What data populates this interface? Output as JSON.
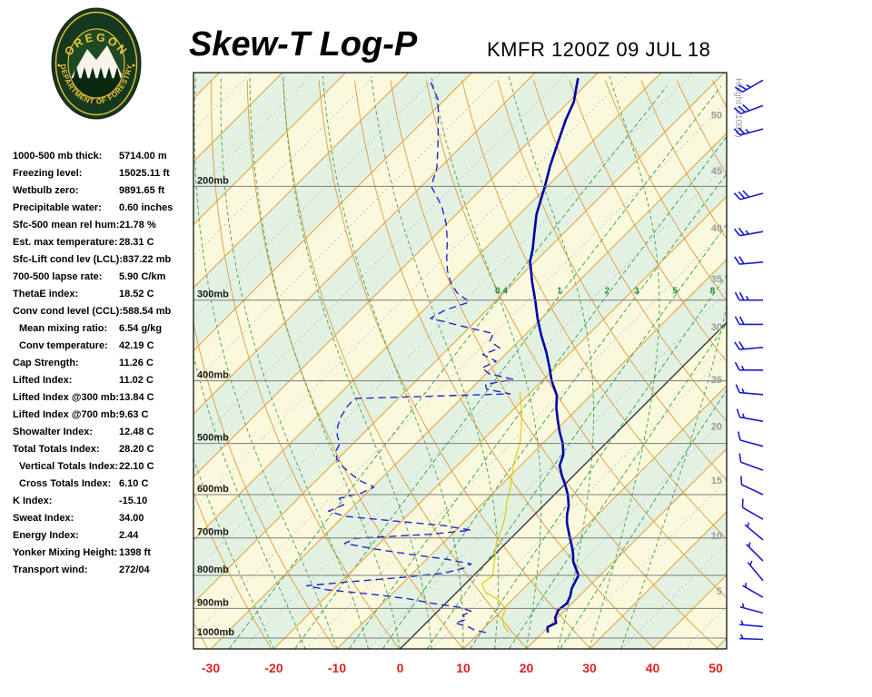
{
  "header": {
    "title": "Skew-T Log-P",
    "station_line": "KMFR 1200Z 09 JUL 18"
  },
  "logo": {
    "top_text": "OREGON",
    "bottom_text": "DEPARTMENT OF FORESTRY"
  },
  "stats": {
    "rows": [
      {
        "label": "1000-500 mb thick:",
        "value": "5714.00 m"
      },
      {
        "label": "Freezing level:",
        "value": "15025.11 ft"
      },
      {
        "label": "Wetbulb zero:",
        "value": "9891.65 ft"
      },
      {
        "label": "Precipitable water:",
        "value": "0.60 inches"
      },
      {
        "label": "Sfc-500 mean rel hum:",
        "value": "21.78 %"
      },
      {
        "label": "Est. max temperature:",
        "value": "28.31 C"
      },
      {
        "label": "Sfc-Lift cond lev (LCL):",
        "value": "837.22 mb"
      },
      {
        "label": "700-500 lapse rate:",
        "value": "5.90 C/km"
      },
      {
        "label": "ThetaE index:",
        "value": "18.52 C"
      },
      {
        "label": "Conv cond level (CCL):",
        "value": "588.54 mb"
      },
      {
        "label": "Mean mixing ratio:",
        "value": "6.54 g/kg",
        "indent": true
      },
      {
        "label": "Conv temperature:",
        "value": "42.19 C",
        "indent": true
      },
      {
        "label": "Cap Strength:",
        "value": "11.26 C"
      },
      {
        "label": "Lifted Index:",
        "value": "11.02 C"
      },
      {
        "label": "Lifted Index @300 mb:",
        "value": "13.84 C"
      },
      {
        "label": "Lifted Index @700 mb:",
        "value": "9.63 C"
      },
      {
        "label": "Showalter Index:",
        "value": "12.48 C"
      },
      {
        "label": "Total Totals Index:",
        "value": "28.20 C"
      },
      {
        "label": "Vertical Totals Index:",
        "value": "22.10 C",
        "indent": true
      },
      {
        "label": "Cross Totals Index:",
        "value": "6.10 C",
        "indent": true
      },
      {
        "label": "K Index:",
        "value": "-15.10"
      },
      {
        "label": "Sweat Index:",
        "value": "34.00"
      },
      {
        "label": "Energy Index:",
        "value": "2.44"
      },
      {
        "label": "Yonker Mixing Height:",
        "value": "1398 ft"
      },
      {
        "label": "Transport wind:",
        "value": "272/04"
      }
    ]
  },
  "chart_data": {
    "type": "line",
    "subtype": "skew-t-log-p",
    "title": "Skew-T Log-P",
    "x_axis": {
      "unit": "C",
      "ticks": [
        {
          "t": -30,
          "label": "-30"
        },
        {
          "t": -20,
          "label": "-20"
        },
        {
          "t": -10,
          "label": "-10"
        },
        {
          "t": 0,
          "label": "0"
        },
        {
          "t": 10,
          "label": "10"
        },
        {
          "t": 20,
          "label": "20"
        },
        {
          "t": 30,
          "label": "30"
        },
        {
          "t": 40,
          "label": "40"
        },
        {
          "t": 50,
          "label": "50"
        }
      ]
    },
    "y_axis": {
      "unit": "mb",
      "scale": "log",
      "top_pressure": 133,
      "bottom_pressure": 1040,
      "pressure_levels": [
        {
          "p": 200,
          "label": "200mb"
        },
        {
          "p": 300,
          "label": "300mb"
        },
        {
          "p": 400,
          "label": "400mb"
        },
        {
          "p": 500,
          "label": "500mb"
        },
        {
          "p": 600,
          "label": "600mb"
        },
        {
          "p": 700,
          "label": "700mb"
        },
        {
          "p": 800,
          "label": "800mb"
        },
        {
          "p": 900,
          "label": "900mb"
        },
        {
          "p": 1000,
          "label": "1000mb"
        }
      ]
    },
    "height_scale": {
      "label": "Height (x1000)",
      "entries": [
        {
          "p": 155,
          "label": "50"
        },
        {
          "p": 189,
          "label": "45"
        },
        {
          "p": 232,
          "label": "40"
        },
        {
          "p": 278,
          "label": "35"
        },
        {
          "p": 330,
          "label": "30"
        },
        {
          "p": 398,
          "label": "25"
        },
        {
          "p": 470,
          "label": "20"
        },
        {
          "p": 570,
          "label": "15"
        },
        {
          "p": 694,
          "label": "10"
        },
        {
          "p": 845,
          "label": "5"
        }
      ]
    },
    "mixing_ratio_lines": [
      0.4,
      1,
      2,
      3,
      5,
      8,
      12,
      20
    ],
    "mixing_ratio_labels": [
      {
        "w": 0.4,
        "label": "0.4"
      },
      {
        "w": 1,
        "label": "1"
      },
      {
        "w": 2,
        "label": "2"
      },
      {
        "w": 3,
        "label": "3"
      },
      {
        "w": 5,
        "label": "5"
      },
      {
        "w": 8,
        "label": "8"
      }
    ],
    "dry_adiabats": {
      "theta_min": 230,
      "theta_max": 450,
      "step": 10
    },
    "moist_adiabat_starts": [
      -20,
      -15,
      -10,
      -5,
      0,
      5,
      10,
      15,
      20,
      25,
      30,
      35
    ],
    "series": [
      {
        "name": "temperature",
        "color": "#0000a8",
        "style": "solid",
        "width": 2.6,
        "points": [
          [
            981,
            20.8
          ],
          [
            962,
            19.9
          ],
          [
            948,
            20.6
          ],
          [
            930,
            19.6
          ],
          [
            905,
            18.9
          ],
          [
            884,
            19.2
          ],
          [
            862,
            18.6
          ],
          [
            838,
            17.6
          ],
          [
            815,
            17.0
          ],
          [
            800,
            16.6
          ],
          [
            782,
            15.2
          ],
          [
            762,
            13.6
          ],
          [
            742,
            12.4
          ],
          [
            722,
            11.0
          ],
          [
            700,
            9.3
          ],
          [
            682,
            7.9
          ],
          [
            663,
            6.4
          ],
          [
            645,
            5.2
          ],
          [
            624,
            4.0
          ],
          [
            600,
            2.1
          ],
          [
            581,
            0.3
          ],
          [
            561,
            -1.8
          ],
          [
            541,
            -3.8
          ],
          [
            521,
            -4.9
          ],
          [
            500,
            -6.8
          ],
          [
            481,
            -9.0
          ],
          [
            461,
            -11.2
          ],
          [
            441,
            -13.4
          ],
          [
            421,
            -15.4
          ],
          [
            400,
            -18.5
          ],
          [
            381,
            -21.0
          ],
          [
            361,
            -23.9
          ],
          [
            341,
            -27.2
          ],
          [
            321,
            -30.5
          ],
          [
            300,
            -33.9
          ],
          [
            281,
            -37.3
          ],
          [
            261,
            -40.9
          ],
          [
            250,
            -42.4
          ],
          [
            236,
            -44.7
          ],
          [
            221,
            -47.3
          ],
          [
            200,
            -50.4
          ],
          [
            186,
            -52.8
          ],
          [
            171,
            -55.3
          ],
          [
            158,
            -57.6
          ],
          [
            148,
            -59.2
          ],
          [
            141,
            -61.0
          ],
          [
            136,
            -62.3
          ]
        ]
      },
      {
        "name": "dewpoint",
        "color": "#2424cf",
        "style": "dashed",
        "width": 1.4,
        "points": [
          [
            981,
            11.0
          ],
          [
            972,
            8.8
          ],
          [
            960,
            7.2
          ],
          [
            948,
            4.6
          ],
          [
            936,
            5.8
          ],
          [
            922,
            4.6
          ],
          [
            910,
            5.4
          ],
          [
            897,
            3.0
          ],
          [
            884,
            -2.0
          ],
          [
            870,
            -6.5
          ],
          [
            856,
            -13.0
          ],
          [
            842,
            -21.0
          ],
          [
            830,
            -24.8
          ],
          [
            818,
            -18.5
          ],
          [
            806,
            -11.0
          ],
          [
            793,
            -5.0
          ],
          [
            780,
            -2.8
          ],
          [
            768,
            -2.2
          ],
          [
            755,
            -7.0
          ],
          [
            742,
            -13.5
          ],
          [
            728,
            -20.0
          ],
          [
            714,
            -25.5
          ],
          [
            701,
            -24.6
          ],
          [
            691,
            -13.5
          ],
          [
            681,
            -7.6
          ],
          [
            670,
            -12.5
          ],
          [
            658,
            -22.0
          ],
          [
            648,
            -29.8
          ],
          [
            636,
            -33.2
          ],
          [
            622,
            -31.8
          ],
          [
            608,
            -33.5
          ],
          [
            596,
            -30.8
          ],
          [
            584,
            -29.8
          ],
          [
            571,
            -33.0
          ],
          [
            558,
            -35.4
          ],
          [
            544,
            -37.8
          ],
          [
            528,
            -40.2
          ],
          [
            512,
            -41.6
          ],
          [
            500,
            -42.1
          ],
          [
            486,
            -43.8
          ],
          [
            470,
            -45.2
          ],
          [
            454,
            -46.2
          ],
          [
            438,
            -46.8
          ],
          [
            426,
            -46.9
          ],
          [
            419,
            -23.0
          ],
          [
            412,
            -27.5
          ],
          [
            405,
            -28.4
          ],
          [
            398,
            -24.8
          ],
          [
            390,
            -29.5
          ],
          [
            382,
            -31.6
          ],
          [
            373,
            -30.4
          ],
          [
            364,
            -33.6
          ],
          [
            356,
            -31.9
          ],
          [
            347,
            -34.6
          ],
          [
            338,
            -35.2
          ],
          [
            329,
            -41.5
          ],
          [
            320,
            -47.6
          ],
          [
            311,
            -46.6
          ],
          [
            302,
            -44.0
          ],
          [
            292,
            -47.5
          ],
          [
            282,
            -50.0
          ],
          [
            270,
            -52.5
          ],
          [
            257,
            -54.8
          ],
          [
            243,
            -57.2
          ],
          [
            229,
            -60.0
          ],
          [
            215,
            -63.5
          ],
          [
            200,
            -68.4
          ],
          [
            187,
            -70.5
          ],
          [
            173,
            -73.8
          ],
          [
            159,
            -77.5
          ],
          [
            147,
            -81.0
          ],
          [
            138,
            -85.0
          ]
        ]
      },
      {
        "name": "wetbulb",
        "color": "#ddd000",
        "style": "solid",
        "width": 1.2,
        "points": [
          [
            981,
            14.6
          ],
          [
            955,
            12.6
          ],
          [
            928,
            11.2
          ],
          [
            903,
            10.4
          ],
          [
            876,
            8.2
          ],
          [
            848,
            4.4
          ],
          [
            824,
            2.6
          ],
          [
            801,
            3.1
          ],
          [
            772,
            1.6
          ],
          [
            744,
            0.2
          ],
          [
            716,
            -1.4
          ],
          [
            700,
            -2.1
          ],
          [
            672,
            -3.2
          ],
          [
            644,
            -4.6
          ],
          [
            616,
            -6.4
          ],
          [
            588,
            -7.9
          ],
          [
            560,
            -9.8
          ],
          [
            532,
            -11.7
          ],
          [
            500,
            -13.6
          ],
          [
            472,
            -15.9
          ],
          [
            444,
            -18.6
          ],
          [
            416,
            -21.8
          ]
        ]
      }
    ],
    "winds": {
      "column_x": 840,
      "color": "#1a1ad0",
      "barbs": [
        {
          "p": 137,
          "dir": 240,
          "spd": 25
        },
        {
          "p": 150,
          "dir": 250,
          "spd": 30
        },
        {
          "p": 163,
          "dir": 255,
          "spd": 25
        },
        {
          "p": 205,
          "dir": 255,
          "spd": 30
        },
        {
          "p": 235,
          "dir": 260,
          "spd": 25
        },
        {
          "p": 262,
          "dir": 265,
          "spd": 20
        },
        {
          "p": 300,
          "dir": 270,
          "spd": 25
        },
        {
          "p": 327,
          "dir": 270,
          "spd": 20
        },
        {
          "p": 355,
          "dir": 265,
          "spd": 20
        },
        {
          "p": 385,
          "dir": 270,
          "spd": 15
        },
        {
          "p": 420,
          "dir": 275,
          "spd": 15
        },
        {
          "p": 462,
          "dir": 280,
          "spd": 15
        },
        {
          "p": 505,
          "dir": 285,
          "spd": 10
        },
        {
          "p": 550,
          "dir": 290,
          "spd": 10
        },
        {
          "p": 600,
          "dir": 295,
          "spd": 10
        },
        {
          "p": 655,
          "dir": 300,
          "spd": 10
        },
        {
          "p": 705,
          "dir": 310,
          "spd": 5
        },
        {
          "p": 760,
          "dir": 315,
          "spd": 5
        },
        {
          "p": 815,
          "dir": 320,
          "spd": 5
        },
        {
          "p": 865,
          "dir": 300,
          "spd": 5
        },
        {
          "p": 915,
          "dir": 285,
          "spd": 5
        },
        {
          "p": 960,
          "dir": 275,
          "spd": 4
        },
        {
          "p": 1005,
          "dir": 272,
          "spd": 4
        }
      ]
    },
    "colors": {
      "band_yellow": "#fbf9dd",
      "band_green": "#e3f1e2",
      "isotherm": "#e2a13c",
      "isotherm_minor": "#8fb3d9",
      "zero_isotherm": "#3a3a3a",
      "dry_adiabat": "#dd9a3e",
      "moist_adiabat": "#55a455",
      "mixing_ratio": "#2e9e4f",
      "mixing_ratio_label": "#1f8c3f",
      "pressure_line": "#7d7d7d",
      "pressure_label": "#1a1a1a",
      "height_label": "#9a9a9a",
      "axis_red": "#dd2222",
      "border": "#000000"
    }
  }
}
